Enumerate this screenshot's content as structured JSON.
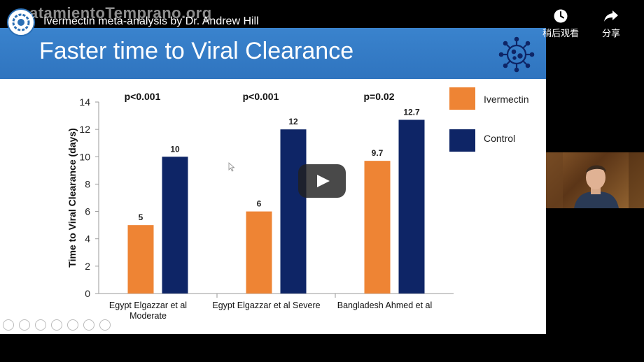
{
  "top_bar": {
    "channel_watermark": "atamientoTemprano.org",
    "video_title": "Ivermectin meta-analysis by Dr. Andrew Hill",
    "watch_later_label": "稍后观看",
    "share_label": "分享"
  },
  "slide": {
    "title": "Faster time to Viral Clearance"
  },
  "chart_data": {
    "type": "bar",
    "ylabel": "Time to Viral Clearance (days)",
    "ylim": [
      0,
      14
    ],
    "yticks": [
      0,
      2,
      4,
      6,
      8,
      10,
      12,
      14
    ],
    "grid": false,
    "legend_position": "top-right",
    "categories": [
      [
        "Egypt Elgazzar et al",
        "Moderate"
      ],
      [
        "Egypt Elgazzar et al Severe"
      ],
      [
        "Bangladesh Ahmed et al"
      ]
    ],
    "p_values": [
      "p<0.001",
      "p<0.001",
      "p=0.02"
    ],
    "series": [
      {
        "name": "Ivermectin",
        "color": "#ee8434",
        "values": [
          5,
          6,
          9.7
        ],
        "labels": [
          "5",
          "6",
          "9.7"
        ]
      },
      {
        "name": "Control",
        "color": "#0e2566",
        "values": [
          10,
          12,
          12.7
        ],
        "labels": [
          "10",
          "12",
          "12.7"
        ]
      }
    ]
  },
  "icons": {
    "virus": "virus-icon",
    "watch_later": "clock-icon",
    "share": "share-arrow-icon",
    "play": "play-icon"
  }
}
